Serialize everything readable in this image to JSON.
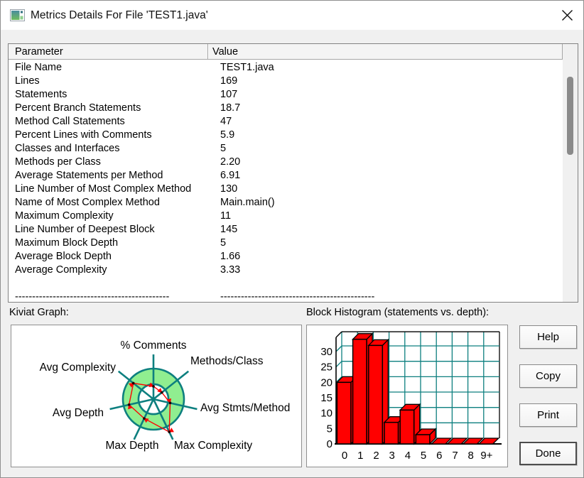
{
  "window": {
    "title": "Metrics Details For File 'TEST1.java'"
  },
  "table": {
    "columns": [
      "Parameter",
      "Value"
    ],
    "rows": [
      [
        "File Name",
        "TEST1.java"
      ],
      [
        "Lines",
        "169"
      ],
      [
        "Statements",
        "107"
      ],
      [
        "Percent Branch Statements",
        "18.7"
      ],
      [
        "Method Call Statements",
        "47"
      ],
      [
        "Percent Lines with Comments",
        "5.9"
      ],
      [
        "Classes and Interfaces",
        "5"
      ],
      [
        "Methods per Class",
        "2.20"
      ],
      [
        "Average Statements per Method",
        "6.91"
      ],
      [
        "Line Number of Most Complex Method",
        "130"
      ],
      [
        "Name of Most Complex Method",
        "Main.main()"
      ],
      [
        "Maximum Complexity",
        "11"
      ],
      [
        "Line Number of Deepest Block",
        "145"
      ],
      [
        "Maximum Block Depth",
        "5"
      ],
      [
        "Average Block Depth",
        "1.66"
      ],
      [
        "Average Complexity",
        "3.33"
      ],
      [
        "",
        ""
      ],
      [
        "---------------------------------------------",
        "---------------------------------------------"
      ]
    ]
  },
  "sections": {
    "kiviat_label": "Kiviat Graph:",
    "histogram_label": "Block Histogram (statements vs. depth):"
  },
  "buttons": {
    "help": "Help",
    "copy": "Copy",
    "print": "Print",
    "done": "Done"
  },
  "chart_data": [
    {
      "type": "radar",
      "name": "Kiviat Graph",
      "axes": [
        "% Comments",
        "Methods/Class",
        "Avg Stmts/Method",
        "Max Complexity",
        "Max Depth",
        "Avg Depth",
        "Avg Complexity"
      ],
      "metric_values": [
        5.9,
        2.2,
        6.91,
        11,
        5,
        1.66,
        3.33
      ],
      "normalized_radii": [
        0.42,
        0.35,
        0.56,
        1.19,
        0.7,
        0.82,
        0.84
      ],
      "ring_inner_frac": 0.49,
      "ring_color": "#90ee90",
      "axis_color": "#0d7f7f",
      "data_color": "#ff0000"
    },
    {
      "type": "bar3d",
      "name": "Block Histogram (statements vs. depth)",
      "categories": [
        "0",
        "1",
        "2",
        "3",
        "4",
        "5",
        "6",
        "7",
        "8",
        "9+"
      ],
      "values": [
        20,
        34,
        32,
        7,
        11,
        3,
        0,
        0,
        0,
        0
      ],
      "xlabel": "depth",
      "ylabel": "statements",
      "yticks": [
        0,
        5,
        10,
        15,
        20,
        25,
        30
      ],
      "ylim": [
        0,
        35
      ],
      "bar_color": "#ff0000",
      "grid_color": "#0d7f7f"
    }
  ],
  "colors": {
    "dialog_bg": "#f0f0f0",
    "teal": "#0d7f7f",
    "ring_green": "#90ee90",
    "bar_red": "#ff0000"
  }
}
